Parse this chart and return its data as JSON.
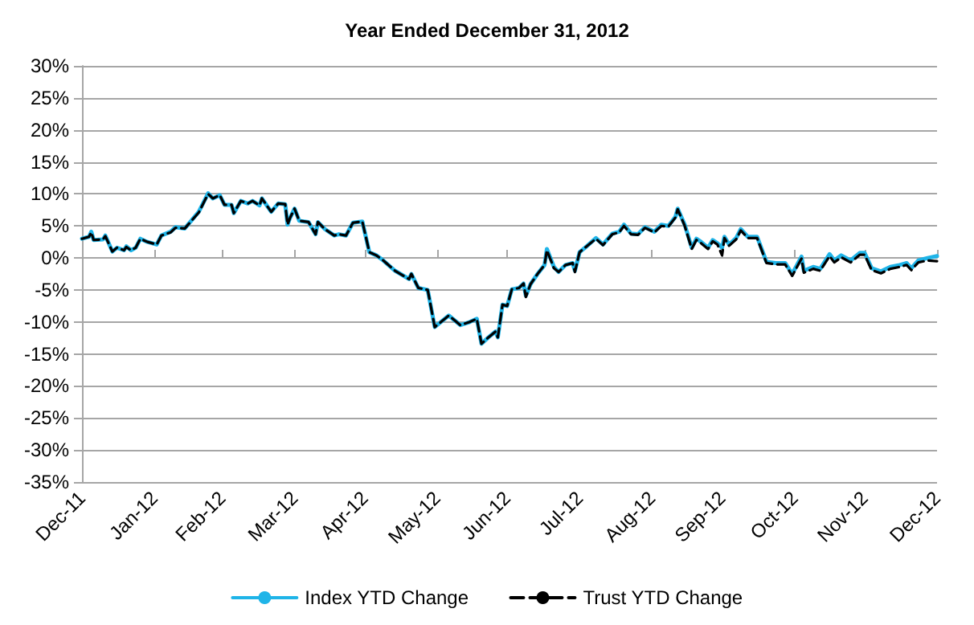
{
  "chart_data": {
    "type": "line",
    "title": "Year Ended December 31, 2012",
    "x": [
      "2011-12-31",
      "2012-01-03",
      "2012-01-04",
      "2012-01-05",
      "2012-01-09",
      "2012-01-10",
      "2012-01-13",
      "2012-01-15",
      "2012-01-18",
      "2012-01-19",
      "2012-01-21",
      "2012-01-23",
      "2012-01-25",
      "2012-01-28",
      "2012-02-01",
      "2012-02-03",
      "2012-02-07",
      "2012-02-09",
      "2012-02-13",
      "2012-02-19",
      "2012-02-23",
      "2012-02-25",
      "2012-02-28",
      "2012-03-01",
      "2012-03-04",
      "2012-03-05",
      "2012-03-08",
      "2012-03-11",
      "2012-03-13",
      "2012-03-16",
      "2012-03-17",
      "2012-03-21",
      "2012-03-24",
      "2012-03-27",
      "2012-03-28",
      "2012-03-29",
      "2012-03-31",
      "2012-04-02",
      "2012-04-06",
      "2012-04-09",
      "2012-04-10",
      "2012-04-13",
      "2012-04-17",
      "2012-04-19",
      "2012-04-22",
      "2012-04-25",
      "2012-04-29",
      "2012-05-02",
      "2012-05-05",
      "2012-05-08",
      "2012-05-13",
      "2012-05-19",
      "2012-05-20",
      "2012-05-23",
      "2012-05-27",
      "2012-05-30",
      "2012-06-05",
      "2012-06-10",
      "2012-06-14",
      "2012-06-17",
      "2012-06-19",
      "2012-06-22",
      "2012-06-25",
      "2012-06-26",
      "2012-06-28",
      "2012-06-30",
      "2012-07-02",
      "2012-07-05",
      "2012-07-07",
      "2012-07-08",
      "2012-07-10",
      "2012-07-13",
      "2012-07-16",
      "2012-07-17",
      "2012-07-20",
      "2012-07-22",
      "2012-07-25",
      "2012-07-28",
      "2012-07-29",
      "2012-07-31",
      "2012-08-03",
      "2012-08-07",
      "2012-08-10",
      "2012-08-14",
      "2012-08-17",
      "2012-08-19",
      "2012-08-22",
      "2012-08-25",
      "2012-08-28",
      "2012-09-01",
      "2012-09-04",
      "2012-09-07",
      "2012-09-10",
      "2012-09-11",
      "2012-09-14",
      "2012-09-17",
      "2012-09-19",
      "2012-09-21",
      "2012-09-24",
      "2012-09-26",
      "2012-09-28",
      "2012-09-30",
      "2012-10-01",
      "2012-10-03",
      "2012-10-06",
      "2012-10-08",
      "2012-10-11",
      "2012-10-15",
      "2012-10-19",
      "2012-10-23",
      "2012-10-27",
      "2012-10-30",
      "2012-11-03",
      "2012-11-04",
      "2012-11-08",
      "2012-11-11",
      "2012-11-15",
      "2012-11-17",
      "2012-11-20",
      "2012-11-24",
      "2012-11-28",
      "2012-11-30",
      "2012-12-03",
      "2012-12-07",
      "2012-12-11",
      "2012-12-15",
      "2012-12-18",
      "2012-12-20",
      "2012-12-23",
      "2012-12-27",
      "2012-12-31"
    ],
    "series": [
      {
        "name": "Index YTD Change",
        "color": "#1fb4e8",
        "line_style": "solid",
        "values": [
          3.0,
          3.3,
          4.1,
          2.8,
          2.9,
          3.5,
          1.0,
          1.6,
          1.2,
          1.8,
          1.2,
          1.6,
          3.0,
          2.5,
          2.1,
          3.5,
          4.1,
          4.8,
          4.6,
          7.2,
          10.1,
          9.3,
          9.8,
          8.3,
          8.3,
          7.0,
          8.9,
          8.5,
          8.9,
          8.2,
          9.3,
          7.2,
          8.5,
          8.4,
          5.2,
          6.2,
          7.7,
          5.8,
          5.6,
          3.7,
          5.6,
          4.5,
          3.5,
          3.7,
          3.5,
          5.5,
          5.7,
          0.9,
          0.4,
          -0.4,
          -2.0,
          -3.3,
          -2.5,
          -4.7,
          -5.0,
          -10.8,
          -9.0,
          -10.5,
          -10.0,
          -9.5,
          -13.4,
          -12.4,
          -11.5,
          -12.4,
          -7.3,
          -7.5,
          -4.9,
          -4.7,
          -4.0,
          -5.9,
          -4.1,
          -2.5,
          -1.1,
          1.4,
          -1.4,
          -2.2,
          -1.1,
          -0.8,
          -2.0,
          0.9,
          1.8,
          3.1,
          2.1,
          3.8,
          4.1,
          5.2,
          3.8,
          3.7,
          4.8,
          4.1,
          5.2,
          5.0,
          6.4,
          7.7,
          5.2,
          1.6,
          3.0,
          2.5,
          1.6,
          2.8,
          2.3,
          1.6,
          3.3,
          2.1,
          3.1,
          4.5,
          3.3,
          3.3,
          -0.6,
          -0.8,
          -0.8,
          -2.5,
          0.2,
          -2.0,
          -1.4,
          -1.7,
          0.6,
          -0.4,
          0.4,
          -0.4,
          0.8,
          0.8,
          -1.6,
          -2.1,
          -1.4,
          -1.1,
          -0.8,
          -1.6,
          -0.4,
          0.0,
          0.3
        ]
      },
      {
        "name": "Trust YTD Change",
        "color": "#000000",
        "line_style": "dashed",
        "values": [
          3.0,
          3.3,
          4.0,
          2.8,
          2.9,
          3.4,
          1.0,
          1.6,
          1.2,
          1.7,
          1.2,
          1.6,
          3.0,
          2.5,
          2.1,
          3.5,
          4.0,
          4.7,
          4.6,
          7.1,
          10.0,
          9.3,
          9.8,
          8.3,
          8.3,
          7.0,
          8.9,
          8.5,
          8.9,
          8.2,
          9.3,
          7.2,
          8.5,
          8.4,
          5.2,
          6.2,
          7.7,
          5.8,
          5.6,
          3.7,
          5.6,
          4.5,
          3.5,
          3.7,
          3.5,
          5.5,
          5.7,
          0.9,
          0.4,
          -0.4,
          -2.0,
          -3.3,
          -2.5,
          -4.7,
          -5.0,
          -10.8,
          -9.0,
          -10.5,
          -10.0,
          -9.5,
          -13.4,
          -12.4,
          -11.5,
          -12.4,
          -7.3,
          -7.5,
          -4.9,
          -4.7,
          -4.0,
          -6.1,
          -4.1,
          -2.5,
          -1.1,
          1.2,
          -1.6,
          -2.2,
          -1.1,
          -0.8,
          -2.2,
          0.9,
          1.8,
          3.0,
          2.0,
          3.7,
          4.0,
          5.0,
          3.7,
          3.6,
          4.7,
          4.0,
          5.0,
          4.9,
          6.3,
          7.6,
          5.0,
          1.4,
          2.8,
          2.3,
          1.4,
          2.6,
          2.1,
          0.4,
          3.1,
          1.9,
          2.9,
          4.3,
          3.1,
          3.1,
          -0.8,
          -1.0,
          -1.0,
          -2.8,
          -0.1,
          -2.3,
          -1.7,
          -2.0,
          0.3,
          -0.7,
          0.1,
          -0.7,
          0.5,
          0.5,
          -1.9,
          -2.4,
          -1.7,
          -1.4,
          -1.1,
          -1.9,
          -0.7,
          -0.4,
          -0.5
        ]
      }
    ],
    "xlim": [
      "2011-12-31",
      "2012-12-31"
    ],
    "xticks": [
      {
        "value": "2011-12-31",
        "label": "Dec-11"
      },
      {
        "value": "2012-01-31",
        "label": "Jan-12"
      },
      {
        "value": "2012-02-29",
        "label": "Feb-12"
      },
      {
        "value": "2012-03-31",
        "label": "Mar-12"
      },
      {
        "value": "2012-04-30",
        "label": "Apr-12"
      },
      {
        "value": "2012-05-31",
        "label": "May-12"
      },
      {
        "value": "2012-06-30",
        "label": "Jun-12"
      },
      {
        "value": "2012-07-31",
        "label": "Jul-12"
      },
      {
        "value": "2012-08-31",
        "label": "Aug-12"
      },
      {
        "value": "2012-09-30",
        "label": "Sep-12"
      },
      {
        "value": "2012-10-31",
        "label": "Oct-12"
      },
      {
        "value": "2012-11-30",
        "label": "Nov-12"
      },
      {
        "value": "2012-12-31",
        "label": "Dec-12"
      }
    ],
    "ylim": [
      -35,
      30
    ],
    "yticks": [
      {
        "value": -35,
        "label": "-35%"
      },
      {
        "value": -30,
        "label": "-30%"
      },
      {
        "value": -25,
        "label": "-25%"
      },
      {
        "value": -20,
        "label": "-20%"
      },
      {
        "value": -15,
        "label": "-15%"
      },
      {
        "value": -10,
        "label": "-10%"
      },
      {
        "value": -5,
        "label": "-5%"
      },
      {
        "value": 0,
        "label": "0%"
      },
      {
        "value": 5,
        "label": "5%"
      },
      {
        "value": 10,
        "label": "10%"
      },
      {
        "value": 15,
        "label": "15%"
      },
      {
        "value": 20,
        "label": "20%"
      },
      {
        "value": 25,
        "label": "25%"
      },
      {
        "value": 30,
        "label": "30%"
      }
    ],
    "grid": "y",
    "legend": "bottom",
    "marker": "none"
  }
}
